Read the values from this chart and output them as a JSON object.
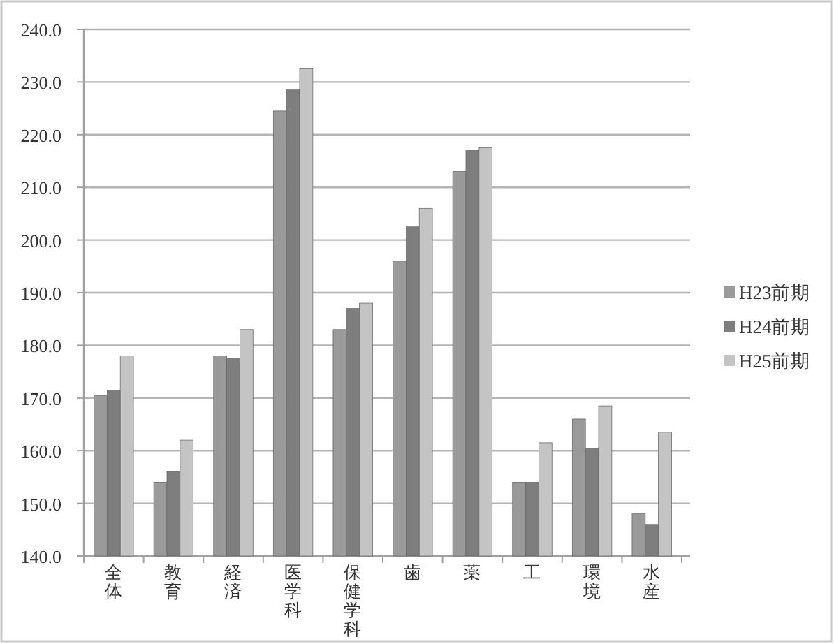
{
  "chart_data": {
    "type": "bar",
    "categories": [
      "全体",
      "教育",
      "経済",
      "医学科",
      "保健学科",
      "歯",
      "薬",
      "工",
      "環境",
      "水産"
    ],
    "series": [
      {
        "name": "H23前期",
        "color": "#9a9a9a",
        "values": [
          170.5,
          154.0,
          178.0,
          224.5,
          183.0,
          196.0,
          213.0,
          154.0,
          166.0,
          148.0
        ]
      },
      {
        "name": "H24前期",
        "color": "#7e7e7e",
        "values": [
          171.5,
          156.0,
          177.5,
          228.5,
          187.0,
          202.5,
          217.0,
          154.0,
          160.5,
          146.0
        ]
      },
      {
        "name": "H25前期",
        "color": "#c4c4c4",
        "values": [
          178.0,
          162.0,
          183.0,
          232.5,
          188.0,
          206.0,
          217.5,
          161.5,
          168.5,
          163.5
        ]
      }
    ],
    "ylim": [
      140,
      240
    ],
    "yticks": [
      {
        "value": 140,
        "label": "140.0"
      },
      {
        "value": 150,
        "label": "150.0"
      },
      {
        "value": 160,
        "label": "160.0"
      },
      {
        "value": 170,
        "label": "170.0"
      },
      {
        "value": 180,
        "label": "180.0"
      },
      {
        "value": 190,
        "label": "190.0"
      },
      {
        "value": 200,
        "label": "200.0"
      },
      {
        "value": 210,
        "label": "210.0"
      },
      {
        "value": 220,
        "label": "220.0"
      },
      {
        "value": 230,
        "label": "230.0"
      },
      {
        "value": 240,
        "label": "240.0"
      }
    ],
    "grid": "y",
    "legend": "right"
  }
}
